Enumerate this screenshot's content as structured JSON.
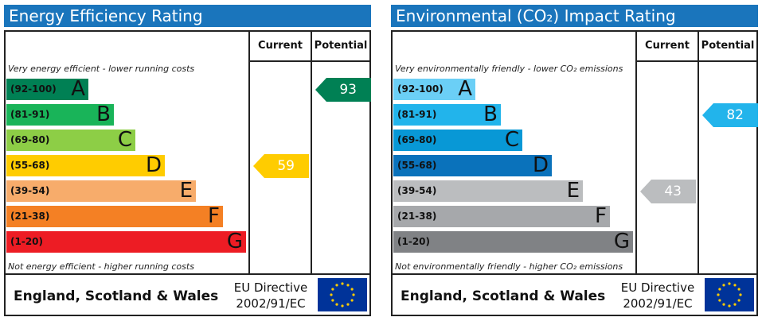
{
  "chart_data": [
    {
      "type": "bar",
      "title": "Energy Efficiency Rating",
      "columns": [
        "Current",
        "Potential"
      ],
      "top_note": "Very energy efficient - lower running costs",
      "bottom_note": "Not energy efficient - higher running costs",
      "bands": [
        {
          "range": "(92-100)",
          "letter": "A",
          "color": "#008054"
        },
        {
          "range": "(81-91)",
          "letter": "B",
          "color": "#19b459"
        },
        {
          "range": "(69-80)",
          "letter": "C",
          "color": "#8dce46"
        },
        {
          "range": "(55-68)",
          "letter": "D",
          "color": "#ffcc00"
        },
        {
          "range": "(39-54)",
          "letter": "E",
          "color": "#f7ac6b"
        },
        {
          "range": "(21-38)",
          "letter": "F",
          "color": "#f48024"
        },
        {
          "range": "(1-20)",
          "letter": "G",
          "color": "#ed1c24"
        }
      ],
      "current": {
        "value": "59",
        "band": "D",
        "color": "#ffcc00"
      },
      "potential": {
        "value": "93",
        "band": "A",
        "color": "#008054"
      },
      "footer": {
        "region": "England, Scotland & Wales",
        "directive_line1": "EU Directive",
        "directive_line2": "2002/91/EC"
      }
    },
    {
      "type": "bar",
      "title": "Environmental (CO₂) Impact Rating",
      "columns": [
        "Current",
        "Potential"
      ],
      "top_note": "Very environmentally friendly - lower CO₂ emissions",
      "bottom_note": "Not environmentally friendly - higher CO₂ emissions",
      "bands": [
        {
          "range": "(92-100)",
          "letter": "A",
          "color": "#6bcff6"
        },
        {
          "range": "(81-91)",
          "letter": "B",
          "color": "#22b4eb"
        },
        {
          "range": "(69-80)",
          "letter": "C",
          "color": "#0898d6"
        },
        {
          "range": "(55-68)",
          "letter": "D",
          "color": "#0a72bb"
        },
        {
          "range": "(39-54)",
          "letter": "E",
          "color": "#bbbdbf"
        },
        {
          "range": "(21-38)",
          "letter": "F",
          "color": "#a6a8ab"
        },
        {
          "range": "(1-20)",
          "letter": "G",
          "color": "#808285"
        }
      ],
      "current": {
        "value": "43",
        "band": "E",
        "color": "#bbbdbf"
      },
      "potential": {
        "value": "82",
        "band": "B",
        "color": "#22b4eb"
      },
      "footer": {
        "region": "England, Scotland & Wales",
        "directive_line1": "EU Directive",
        "directive_line2": "2002/91/EC"
      }
    }
  ]
}
